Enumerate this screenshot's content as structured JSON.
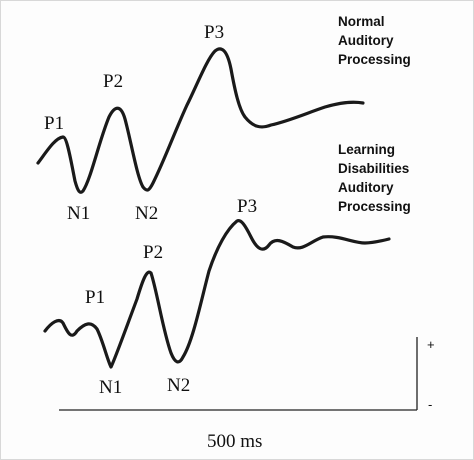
{
  "normal": {
    "label_lines": [
      "Normal",
      "Auditory",
      "Processing"
    ],
    "peaks": {
      "p1": "P1",
      "n1": "N1",
      "p2": "P2",
      "n2": "N2",
      "p3": "P3"
    }
  },
  "ld": {
    "label_lines": [
      "Learning",
      "Disabilities",
      "Auditory",
      "Processing"
    ],
    "peaks": {
      "p1": "P1",
      "n1": "N1",
      "p2": "P2",
      "n2": "N2",
      "p3": "P3"
    }
  },
  "axes": {
    "plus_sign": "+",
    "minus_sign": "-",
    "time_scale": "500 ms"
  }
}
